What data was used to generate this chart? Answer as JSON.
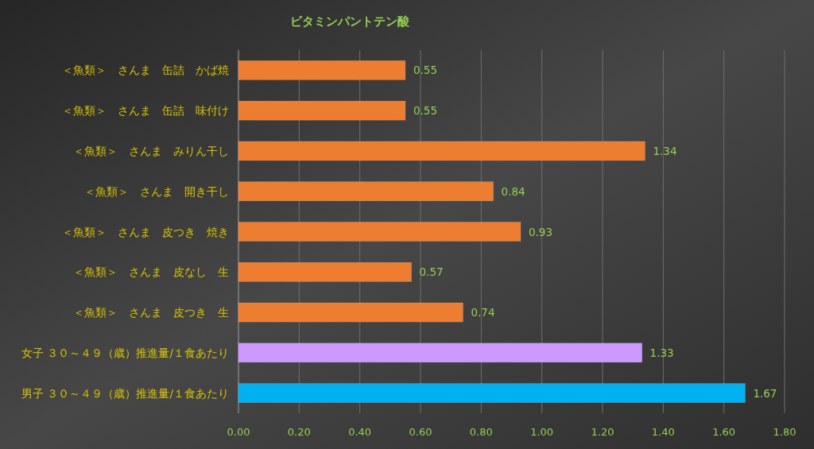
{
  "chart_data": {
    "type": "bar",
    "orientation": "horizontal",
    "title": "ビタミンパントテン酸",
    "categories": [
      "＜魚類＞　さんま　缶詰　かば焼",
      "＜魚類＞　さんま　缶詰　味付け",
      "＜魚類＞　さんま　みりん干し",
      "＜魚類＞　さんま　開き干し",
      "＜魚類＞　さんま　皮つき　焼き",
      "＜魚類＞　さんま　皮なし　生",
      "＜魚類＞　さんま　皮つき　生",
      "女子 ３０～４９（歳）推進量/１食あたり",
      "男子 ３０～４９（歳）推進量/１食あたり"
    ],
    "values": [
      0.55,
      0.55,
      1.34,
      0.84,
      0.93,
      0.57,
      0.74,
      1.33,
      1.67
    ],
    "colors": [
      "#ed7d31",
      "#ed7d31",
      "#ed7d31",
      "#ed7d31",
      "#ed7d31",
      "#ed7d31",
      "#ed7d31",
      "#cc99ff",
      "#00b0f0"
    ],
    "xlim": [
      0,
      1.8
    ],
    "xticks": [
      {
        "value": 0,
        "label": "0.00"
      },
      {
        "value": 0.2,
        "label": "0.20"
      },
      {
        "value": 0.4,
        "label": "0.40"
      },
      {
        "value": 0.6,
        "label": "0.60"
      },
      {
        "value": 0.8,
        "label": "0.80"
      },
      {
        "value": 1.0,
        "label": "1.00"
      },
      {
        "value": 1.2,
        "label": "1.20"
      },
      {
        "value": 1.4,
        "label": "1.40"
      },
      {
        "value": 1.6,
        "label": "1.60"
      },
      {
        "value": 1.8,
        "label": "1.80"
      }
    ],
    "grid": "x",
    "data_labels": true
  }
}
